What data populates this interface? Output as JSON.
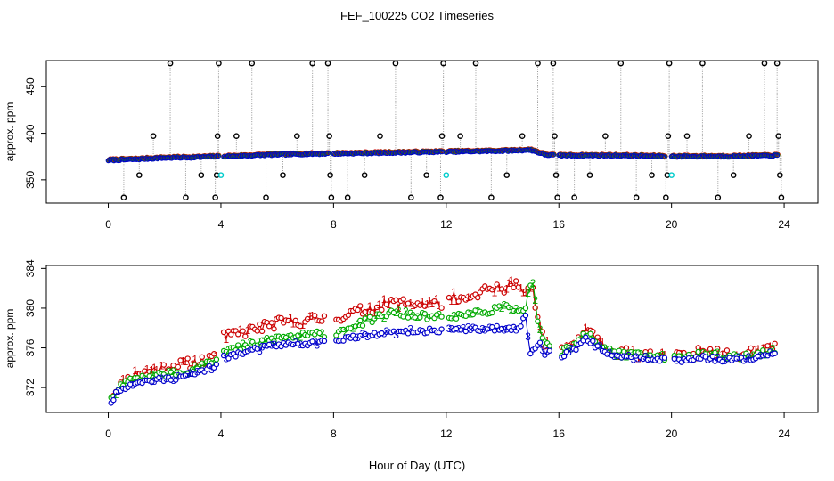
{
  "chart_data": {
    "title": "FEF_100225  CO2 Timeseries",
    "xlabel": "Hour of Day (UTC)",
    "colors": {
      "series1": "#cc0000",
      "series2": "#00aa00",
      "series3": "#0000cc",
      "outlier": "#000000",
      "cal": "#00cccc",
      "connector": "#999999"
    },
    "panels": [
      {
        "type": "scatter",
        "ylabel": "approx. ppm",
        "xlim": [
          -2.2,
          25.2
        ],
        "ylim": [
          325,
          478
        ],
        "xticks": [
          0,
          4,
          8,
          12,
          16,
          20,
          24
        ],
        "yticks": [
          350,
          400,
          450
        ],
        "baseline": [
          [
            0,
            371
          ],
          [
            1,
            372
          ],
          [
            2,
            373.5
          ],
          [
            3,
            374
          ],
          [
            3.9,
            375
          ],
          [
            4.1,
            375
          ],
          [
            6,
            377
          ],
          [
            7.8,
            378
          ],
          [
            8,
            378
          ],
          [
            10,
            379
          ],
          [
            11.9,
            380
          ],
          [
            12,
            380
          ],
          [
            14,
            381
          ],
          [
            15,
            382
          ],
          [
            15.5,
            377
          ],
          [
            15.85,
            376
          ],
          [
            16,
            376
          ],
          [
            18,
            376
          ],
          [
            19.8,
            375
          ],
          [
            20,
            375
          ],
          [
            22,
            375
          ],
          [
            23.8,
            376
          ]
        ],
        "outliers": [
          {
            "x": 0.55,
            "y": 331
          },
          {
            "x": 1.1,
            "y": 355
          },
          {
            "x": 1.6,
            "y": 397
          },
          {
            "x": 2.2,
            "y": 475
          },
          {
            "x": 2.75,
            "y": 331
          },
          {
            "x": 3.3,
            "y": 355
          },
          {
            "x": 3.8,
            "y": 331
          },
          {
            "x": 3.85,
            "y": 355
          },
          {
            "x": 3.88,
            "y": 397
          },
          {
            "x": 3.92,
            "y": 475
          },
          {
            "x": 4.55,
            "y": 397
          },
          {
            "x": 5.1,
            "y": 475
          },
          {
            "x": 5.6,
            "y": 331
          },
          {
            "x": 6.2,
            "y": 355
          },
          {
            "x": 6.7,
            "y": 397
          },
          {
            "x": 7.25,
            "y": 475
          },
          {
            "x": 7.8,
            "y": 475
          },
          {
            "x": 7.85,
            "y": 397
          },
          {
            "x": 7.88,
            "y": 355
          },
          {
            "x": 7.92,
            "y": 331
          },
          {
            "x": 8.5,
            "y": 331
          },
          {
            "x": 9.1,
            "y": 355
          },
          {
            "x": 9.65,
            "y": 397
          },
          {
            "x": 10.2,
            "y": 475
          },
          {
            "x": 10.75,
            "y": 331
          },
          {
            "x": 11.3,
            "y": 355
          },
          {
            "x": 11.8,
            "y": 331
          },
          {
            "x": 11.85,
            "y": 397
          },
          {
            "x": 11.9,
            "y": 475
          },
          {
            "x": 12.5,
            "y": 397
          },
          {
            "x": 13.05,
            "y": 475
          },
          {
            "x": 13.6,
            "y": 331
          },
          {
            "x": 14.15,
            "y": 355
          },
          {
            "x": 14.7,
            "y": 397
          },
          {
            "x": 15.25,
            "y": 475
          },
          {
            "x": 15.8,
            "y": 475
          },
          {
            "x": 15.85,
            "y": 397
          },
          {
            "x": 15.9,
            "y": 355
          },
          {
            "x": 15.95,
            "y": 331
          },
          {
            "x": 16.55,
            "y": 331
          },
          {
            "x": 17.1,
            "y": 355
          },
          {
            "x": 17.65,
            "y": 397
          },
          {
            "x": 18.2,
            "y": 475
          },
          {
            "x": 18.75,
            "y": 331
          },
          {
            "x": 19.3,
            "y": 355
          },
          {
            "x": 19.8,
            "y": 331
          },
          {
            "x": 19.85,
            "y": 355
          },
          {
            "x": 19.88,
            "y": 397
          },
          {
            "x": 19.92,
            "y": 475
          },
          {
            "x": 20.55,
            "y": 397
          },
          {
            "x": 21.1,
            "y": 475
          },
          {
            "x": 21.65,
            "y": 331
          },
          {
            "x": 22.2,
            "y": 355
          },
          {
            "x": 22.75,
            "y": 397
          },
          {
            "x": 23.3,
            "y": 475
          },
          {
            "x": 23.75,
            "y": 475
          },
          {
            "x": 23.8,
            "y": 397
          },
          {
            "x": 23.85,
            "y": 355
          },
          {
            "x": 23.9,
            "y": 331
          }
        ],
        "cal_points": [
          {
            "x": 4.0,
            "y": 355
          },
          {
            "x": 12.0,
            "y": 355
          },
          {
            "x": 20.0,
            "y": 355
          }
        ]
      },
      {
        "type": "scatter",
        "ylabel": "approx. ppm",
        "xlim": [
          -2.2,
          25.2
        ],
        "ylim": [
          369.5,
          384.3
        ],
        "xticks": [
          0,
          4,
          8,
          12,
          16,
          20,
          24
        ],
        "yticks": [
          372,
          376,
          380,
          384
        ],
        "segments": [
          {
            "start": 0.1,
            "end": 3.9,
            "gaps": [],
            "series1": [
              [
                0,
                370.8
              ],
              [
                0.4,
                372.2
              ],
              [
                1,
                373.5
              ],
              [
                2,
                374
              ],
              [
                3,
                374.5
              ],
              [
                3.9,
                375
              ]
            ],
            "series2": [
              [
                0,
                370.5
              ],
              [
                0.4,
                372
              ],
              [
                1,
                373
              ],
              [
                2,
                373.3
              ],
              [
                3,
                373.8
              ],
              [
                3.9,
                374.8
              ]
            ],
            "series3": [
              [
                0,
                370.3
              ],
              [
                0.4,
                371.8
              ],
              [
                1,
                372.6
              ],
              [
                2,
                372.8
              ],
              [
                3,
                373.3
              ],
              [
                3.9,
                374.3
              ]
            ]
          },
          {
            "start": 4.1,
            "end": 11.9,
            "gaps": [
              [
                7.72,
                8.05
              ]
            ],
            "series1": [
              [
                4,
                377
              ],
              [
                6,
                378.5
              ],
              [
                8,
                379
              ],
              [
                10,
                380.5
              ],
              [
                11.9,
                380.5
              ]
            ],
            "series2": [
              [
                4,
                375.5
              ],
              [
                6,
                377
              ],
              [
                8,
                377.5
              ],
              [
                10,
                379.5
              ],
              [
                11.9,
                379
              ]
            ],
            "series3": [
              [
                4,
                375
              ],
              [
                6,
                376.3
              ],
              [
                7.5,
                376.5
              ],
              [
                8,
                376.8
              ],
              [
                10,
                377.5
              ],
              [
                11.9,
                377.8
              ]
            ]
          },
          {
            "start": 12.1,
            "end": 15.75,
            "gaps": [],
            "series1": [
              [
                12,
                381
              ],
              [
                13,
                381.5
              ],
              [
                14,
                382
              ],
              [
                14.6,
                382.5
              ],
              [
                14.8,
                381
              ],
              [
                15.05,
                382.5
              ],
              [
                15.2,
                379.5
              ],
              [
                15.5,
                376.3
              ],
              [
                15.75,
                376
              ]
            ],
            "series2": [
              [
                12,
                379
              ],
              [
                13,
                379.5
              ],
              [
                14,
                380
              ],
              [
                14.8,
                380
              ],
              [
                15.05,
                383
              ],
              [
                15.25,
                378.5
              ],
              [
                15.5,
                376.5
              ],
              [
                15.75,
                376.2
              ]
            ],
            "series3": [
              [
                12,
                378
              ],
              [
                13,
                377.8
              ],
              [
                14,
                378
              ],
              [
                14.6,
                378
              ],
              [
                14.8,
                379.5
              ],
              [
                15.0,
                375.3
              ],
              [
                15.3,
                376.5
              ],
              [
                15.5,
                375.5
              ],
              [
                15.75,
                375.8
              ]
            ]
          },
          {
            "start": 16.1,
            "end": 19.8,
            "gaps": [],
            "series1": [
              [
                16.1,
                375.7
              ],
              [
                16.6,
                376.6
              ],
              [
                17,
                378
              ],
              [
                17.3,
                376.8
              ],
              [
                18,
                375.6
              ],
              [
                19,
                375.4
              ],
              [
                19.8,
                375.3
              ]
            ],
            "series2": [
              [
                16.1,
                375.5
              ],
              [
                16.6,
                376.4
              ],
              [
                17,
                377.5
              ],
              [
                17.3,
                376.5
              ],
              [
                18,
                375.4
              ],
              [
                19,
                375.2
              ],
              [
                19.8,
                375.1
              ]
            ],
            "series3": [
              [
                16.1,
                375.2
              ],
              [
                16.6,
                376
              ],
              [
                17,
                377
              ],
              [
                17.3,
                376.2
              ],
              [
                18,
                375.1
              ],
              [
                19,
                375
              ],
              [
                19.8,
                374.9
              ]
            ]
          },
          {
            "start": 20.1,
            "end": 23.75,
            "gaps": [],
            "series1": [
              [
                20.1,
                375.2
              ],
              [
                21,
                375.5
              ],
              [
                22,
                375.3
              ],
              [
                23,
                375.5
              ],
              [
                23.75,
                376
              ]
            ],
            "series2": [
              [
                20.1,
                375
              ],
              [
                21,
                375.3
              ],
              [
                22,
                375.1
              ],
              [
                23,
                375.3
              ],
              [
                23.75,
                375.8
              ]
            ],
            "series3": [
              [
                20.1,
                374.7
              ],
              [
                21,
                375
              ],
              [
                22,
                374.8
              ],
              [
                23,
                375
              ],
              [
                23.75,
                375.5
              ]
            ]
          }
        ]
      }
    ]
  }
}
